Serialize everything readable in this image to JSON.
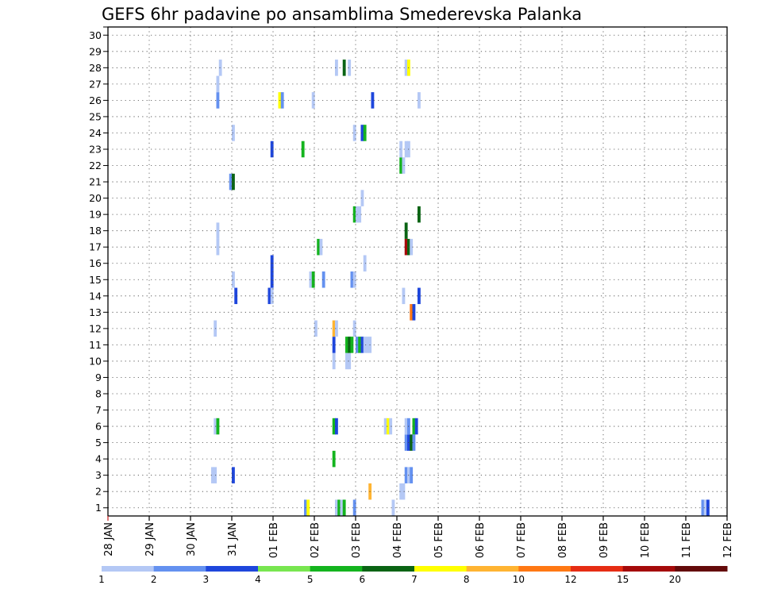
{
  "chart_data": {
    "type": "heatmap",
    "title": "GEFS 6hr padavine po ansamblima Smederevska Palanka",
    "x_tick_labels": [
      "28 JAN",
      "29 JAN",
      "30 JAN",
      "31 JAN",
      "01 FEB",
      "02 FEB",
      "03 FEB",
      "04 FEB",
      "05 FEB",
      "06 FEB",
      "07 FEB",
      "08 FEB",
      "09 FEB",
      "10 FEB",
      "11 FEB",
      "12 FEB"
    ],
    "y_tick_labels": [
      "1",
      "2",
      "3",
      "4",
      "5",
      "6",
      "7",
      "8",
      "9",
      "10",
      "11",
      "12",
      "13",
      "14",
      "15",
      "16",
      "17",
      "18",
      "19",
      "20",
      "21",
      "22",
      "23",
      "24",
      "25",
      "26",
      "27",
      "28",
      "29",
      "30"
    ],
    "x_range": [
      0,
      60
    ],
    "y_range": [
      0.5,
      30.5
    ],
    "grid": true,
    "legend_position": "bottom",
    "legend_labels": [
      "1",
      "2",
      "3",
      "4",
      "5",
      "6",
      "7",
      "8",
      "10",
      "12",
      "15",
      "20"
    ],
    "colors": [
      "#b4c8f5",
      "#6491f0",
      "#1e46dc",
      "#78e650",
      "#14b41e",
      "#0a6414",
      "#ffff00",
      "#ffb432",
      "#ff7814",
      "#e62d14",
      "#a50a0a",
      "#640a0a"
    ],
    "cells": [
      [
        57.5,
        1,
        0
      ],
      [
        57.5,
        1,
        1
      ],
      [
        57.75,
        1,
        0
      ],
      [
        58,
        1,
        2
      ],
      [
        19,
        1,
        1
      ],
      [
        19.25,
        1,
        6
      ],
      [
        22,
        1,
        0
      ],
      [
        22.25,
        1,
        4
      ],
      [
        22.5,
        1,
        0
      ],
      [
        22.75,
        1,
        4
      ],
      [
        23.75,
        1,
        1
      ],
      [
        27.5,
        1,
        0
      ],
      [
        25.25,
        2,
        7
      ],
      [
        28.25,
        2,
        0
      ],
      [
        28.5,
        2,
        0
      ],
      [
        10,
        3,
        0
      ],
      [
        10.25,
        3,
        0
      ],
      [
        12,
        3,
        2
      ],
      [
        28.75,
        3,
        1
      ],
      [
        29,
        3,
        0
      ],
      [
        29.25,
        3,
        1
      ],
      [
        21.75,
        4,
        4
      ],
      [
        28.75,
        5,
        1
      ],
      [
        29,
        5,
        2
      ],
      [
        29.25,
        5,
        5
      ],
      [
        29.5,
        5,
        1
      ],
      [
        10.25,
        6,
        0
      ],
      [
        10.5,
        6,
        4
      ],
      [
        21.75,
        6,
        4
      ],
      [
        22,
        6,
        2
      ],
      [
        26.75,
        6,
        0
      ],
      [
        27,
        6,
        6
      ],
      [
        27.25,
        6,
        0
      ],
      [
        28.75,
        6,
        0
      ],
      [
        29,
        6,
        1
      ],
      [
        29.5,
        6,
        4
      ],
      [
        29.75,
        6,
        2
      ],
      [
        21.75,
        10,
        0
      ],
      [
        23,
        10,
        0
      ],
      [
        23.25,
        10,
        0
      ],
      [
        21.75,
        11,
        2
      ],
      [
        23,
        11,
        4
      ],
      [
        23.25,
        11,
        5
      ],
      [
        23.5,
        11,
        4
      ],
      [
        24,
        11,
        1
      ],
      [
        24.25,
        11,
        4
      ],
      [
        24.5,
        11,
        2
      ],
      [
        24.75,
        11,
        0
      ],
      [
        25,
        11,
        0
      ],
      [
        25.25,
        11,
        0
      ],
      [
        10.25,
        12,
        0
      ],
      [
        20,
        12,
        0
      ],
      [
        21.75,
        12,
        7
      ],
      [
        22,
        12,
        0
      ],
      [
        23.75,
        12,
        0
      ],
      [
        29.25,
        13,
        8
      ],
      [
        29.5,
        13,
        2
      ],
      [
        12.25,
        14,
        2
      ],
      [
        15.5,
        14,
        2
      ],
      [
        15.75,
        14,
        0
      ],
      [
        28.5,
        14,
        0
      ],
      [
        30,
        14,
        2
      ],
      [
        12,
        15,
        0
      ],
      [
        15.75,
        15,
        2
      ],
      [
        19.5,
        15,
        0
      ],
      [
        19.75,
        15,
        4
      ],
      [
        20.75,
        15,
        1
      ],
      [
        23.5,
        15,
        1
      ],
      [
        23.75,
        15,
        0
      ],
      [
        15.75,
        16,
        2
      ],
      [
        24.75,
        16,
        0
      ],
      [
        10.5,
        17,
        0
      ],
      [
        20.25,
        17,
        4
      ],
      [
        20.5,
        17,
        0
      ],
      [
        28.75,
        17,
        10
      ],
      [
        29,
        17,
        5
      ],
      [
        29.25,
        17,
        0
      ],
      [
        10.5,
        18,
        0
      ],
      [
        28.75,
        18,
        5
      ],
      [
        23.75,
        19,
        4
      ],
      [
        24,
        19,
        0
      ],
      [
        24.25,
        19,
        0
      ],
      [
        30,
        19,
        5
      ],
      [
        24.5,
        20,
        0
      ],
      [
        11.75,
        21,
        1
      ],
      [
        12,
        21,
        5
      ],
      [
        28.25,
        22,
        4
      ],
      [
        28.5,
        22,
        0
      ],
      [
        15.75,
        23,
        2
      ],
      [
        18.75,
        23,
        4
      ],
      [
        28.25,
        23,
        0
      ],
      [
        28.75,
        23,
        0
      ],
      [
        29,
        23,
        0
      ],
      [
        12,
        24,
        0
      ],
      [
        23.75,
        24,
        0
      ],
      [
        24.5,
        24,
        2
      ],
      [
        24.75,
        24,
        4
      ],
      [
        10.5,
        26,
        1
      ],
      [
        16.5,
        26,
        6
      ],
      [
        16.75,
        26,
        1
      ],
      [
        19.75,
        26,
        0
      ],
      [
        25.5,
        26,
        2
      ],
      [
        30,
        26,
        0
      ],
      [
        10.5,
        27,
        0
      ],
      [
        10.75,
        28,
        0
      ],
      [
        22,
        28,
        0
      ],
      [
        22.75,
        28,
        5
      ],
      [
        23.25,
        28,
        0
      ],
      [
        28.75,
        28,
        0
      ],
      [
        29,
        28,
        6
      ]
    ]
  }
}
